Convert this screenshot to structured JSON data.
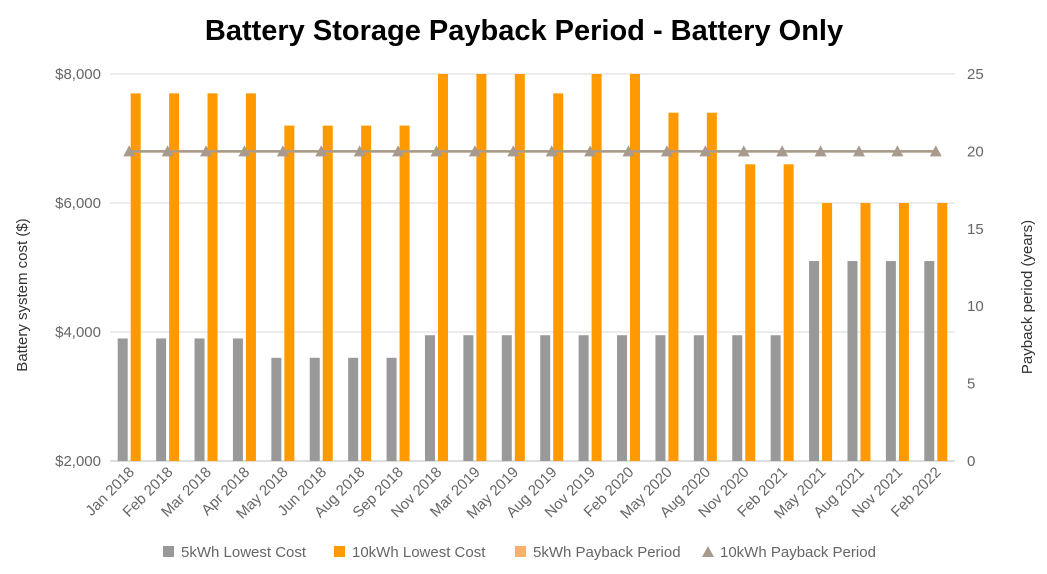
{
  "chart_data": {
    "type": "bar",
    "title": "Battery Storage Payback Period - Battery Only",
    "ylabel": "Battery system cost ($)",
    "y2label": "Payback period (years)",
    "ylim": [
      2000,
      8000
    ],
    "y2lim": [
      0,
      25
    ],
    "yticks": [
      "$2,000",
      "$4,000",
      "$6,000",
      "$8,000"
    ],
    "y2ticks": [
      "0",
      "5",
      "10",
      "15",
      "20",
      "25"
    ],
    "grid": true,
    "legend_position": "bottom",
    "categories": [
      "Jan 2018",
      "Feb 2018",
      "Mar 2018",
      "Apr 2018",
      "May 2018",
      "Jun 2018",
      "Aug 2018",
      "Sep 2018",
      "Nov 2018",
      "Mar 2019",
      "May 2019",
      "Aug 2019",
      "Nov 2019",
      "Feb 2020",
      "May 2020",
      "Aug 2020",
      "Nov 2020",
      "Feb 2021",
      "May 2021",
      "Aug 2021",
      "Nov 2021",
      "Feb 2022"
    ],
    "series": [
      {
        "name": "5kWh Lowest Cost",
        "kind": "bar",
        "axis": "left",
        "color": "#999999",
        "values": [
          3900,
          3900,
          3900,
          3900,
          3600,
          3600,
          3600,
          3600,
          3950,
          3950,
          3950,
          3950,
          3950,
          3950,
          3950,
          3950,
          3950,
          3950,
          5100,
          5100,
          5100,
          5100
        ]
      },
      {
        "name": "10kWh Lowest Cost",
        "kind": "bar",
        "axis": "left",
        "color": "#ff9900",
        "values": [
          7700,
          7700,
          7700,
          7700,
          7200,
          7200,
          7200,
          7200,
          8000,
          8000,
          8000,
          7700,
          8000,
          8000,
          7400,
          7400,
          6600,
          6600,
          6000,
          6000,
          6000,
          6000
        ]
      },
      {
        "name": "5kWh Payback Period",
        "kind": "line",
        "axis": "right",
        "color": "#f6b26b",
        "values": [
          20,
          20,
          20,
          20,
          20,
          20,
          20,
          20,
          20,
          20,
          20,
          20,
          20,
          20,
          20,
          20,
          20,
          20,
          20,
          20,
          20,
          20
        ]
      },
      {
        "name": "10kWh Payback Period",
        "kind": "line",
        "axis": "right",
        "color": "#a89a8c",
        "values": [
          20,
          20,
          20,
          20,
          20,
          20,
          20,
          20,
          20,
          20,
          20,
          20,
          20,
          20,
          20,
          20,
          20,
          20,
          20,
          20,
          20,
          20
        ]
      }
    ]
  }
}
